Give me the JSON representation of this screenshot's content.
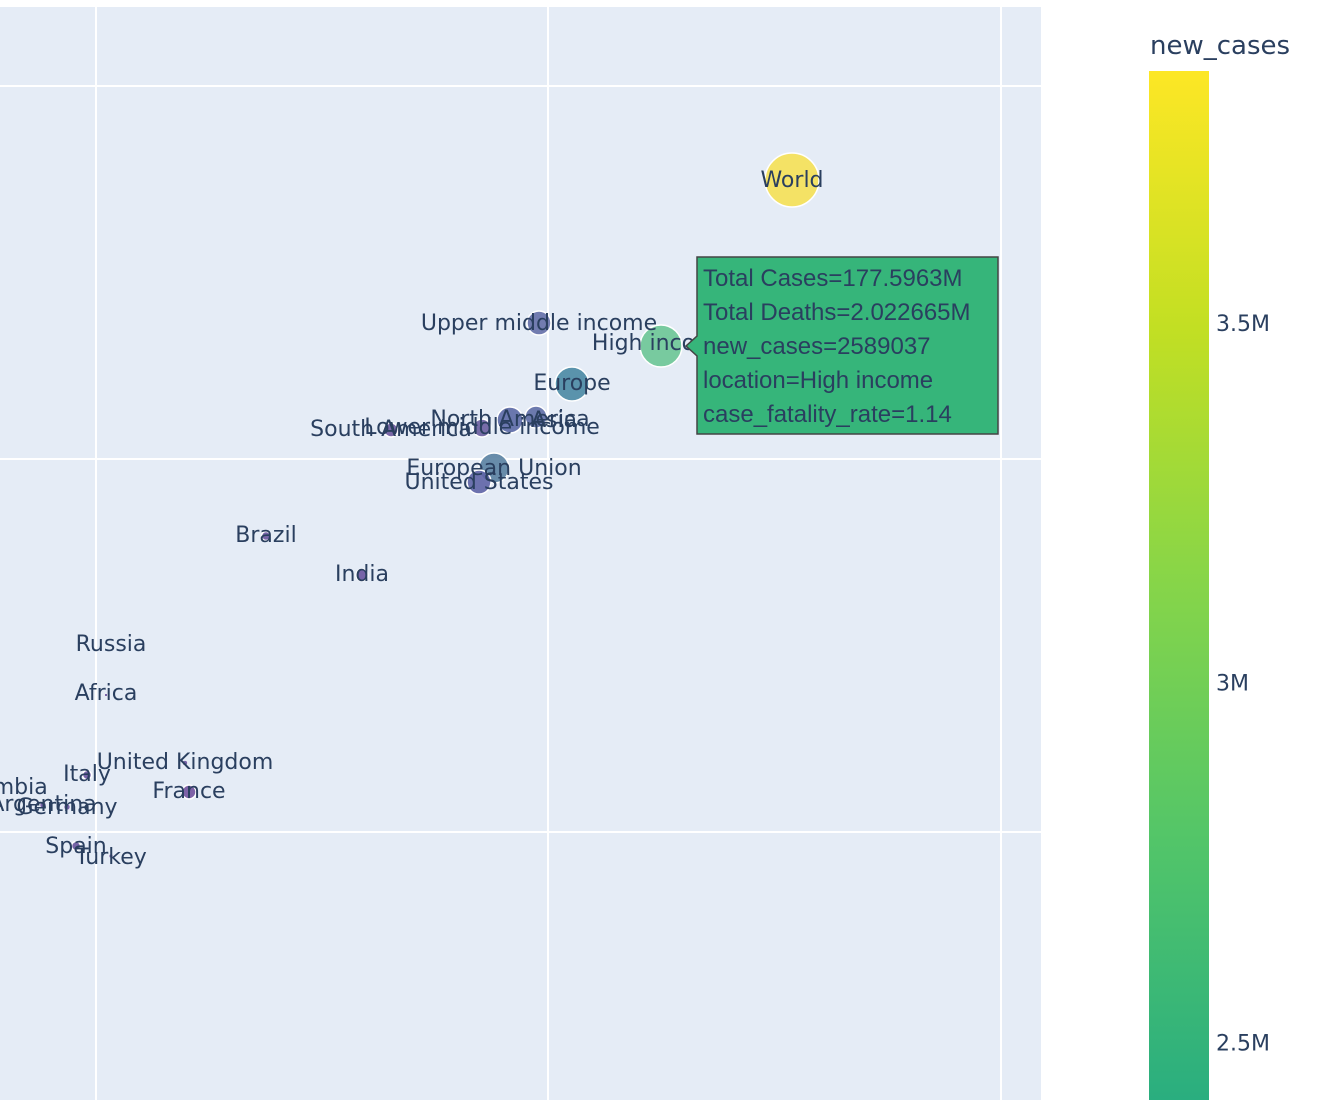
{
  "chart_data": {
    "type": "scatter",
    "colorbar": {
      "title": "new_cases",
      "colorscale": [
        "#2aae7f",
        "#52c569",
        "#86d549",
        "#c2df23",
        "#fde725"
      ],
      "cmin": 2420000,
      "cmax": 3850000,
      "ticks": [
        {
          "value": 2500000,
          "label": "2.5M"
        },
        {
          "value": 3000000,
          "label": "3M"
        },
        {
          "value": 3500000,
          "label": "3.5M"
        }
      ]
    },
    "grid": true,
    "background": "#e5ecf6",
    "points": [
      {
        "label": "World",
        "color": "#f4e25d",
        "size": 54
      },
      {
        "label": "High income",
        "color": "#6cc796",
        "size": 42
      },
      {
        "label": "Upper middle income",
        "color": "#6570a8",
        "size": 24
      },
      {
        "label": "Europe",
        "color": "#4a8aa4",
        "size": 34
      },
      {
        "label": "Asia",
        "color": "#5e6ea6",
        "size": 22
      },
      {
        "label": "North America",
        "color": "#5c6aa6",
        "size": 26
      },
      {
        "label": "Lower middle income",
        "color": "#6a5ea0",
        "size": 18
      },
      {
        "label": "South America",
        "color": "#6e5aa0",
        "size": 14
      },
      {
        "label": "European Union",
        "color": "#5a82a2",
        "size": 30
      },
      {
        "label": "United States",
        "color": "#5e64a6",
        "size": 24
      },
      {
        "label": "Brazil",
        "color": "#6a55a0",
        "size": 9
      },
      {
        "label": "India",
        "color": "#6a55a0",
        "size": 12
      },
      {
        "label": "Russia",
        "color": "#6a55a0",
        "size": 2
      },
      {
        "label": "Africa",
        "color": "#6a55a0",
        "size": 3
      },
      {
        "label": "United Kingdom",
        "color": "#6a55a0",
        "size": 5
      },
      {
        "label": "Italy",
        "color": "#6a55a0",
        "size": 9
      },
      {
        "label": "France",
        "color": "#7354a0",
        "size": 14
      },
      {
        "label": "Colombia",
        "color": "#6a55a0",
        "size": 6
      },
      {
        "label": "Argentina",
        "color": "#6a55a0",
        "size": 6
      },
      {
        "label": "Germany",
        "color": "#6a55a0",
        "size": 6
      },
      {
        "label": "Spain",
        "color": "#6a55a0",
        "size": 9
      },
      {
        "label": "Turkey",
        "color": "#6a55a0",
        "size": 4
      }
    ],
    "hover": {
      "point": "High income",
      "bgcolor": "#36b57a",
      "lines": [
        "Total Cases=177.5963M",
        "Total Deaths=2.022665M",
        "new_cases=2589037",
        "location=High income",
        "case_fatality_rate=1.14"
      ]
    }
  }
}
